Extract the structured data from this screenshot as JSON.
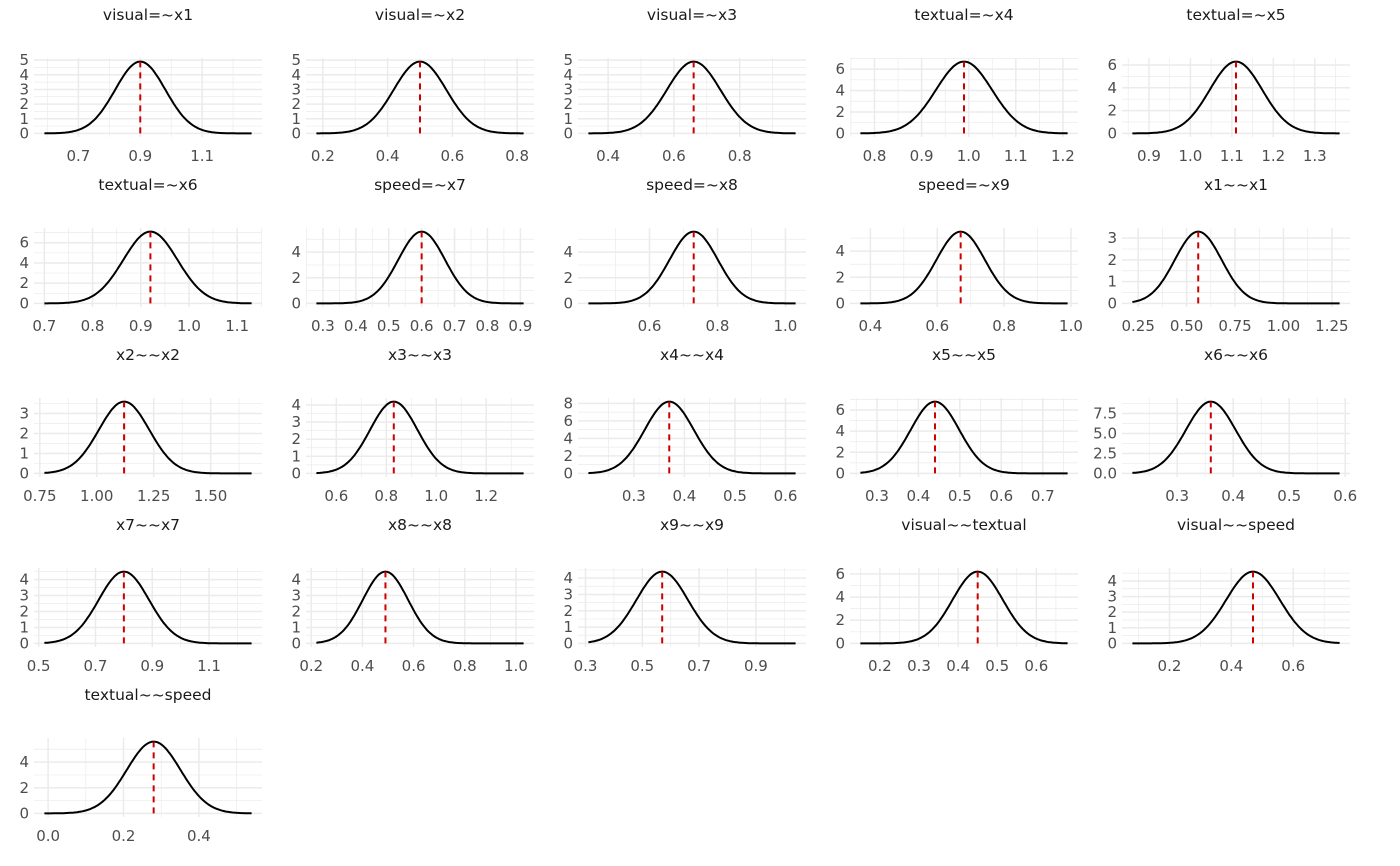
{
  "chart_data": {
    "type": "line",
    "layout": "facet grid, 5 columns",
    "grid": true,
    "colors": {
      "curve": "#000000",
      "mean_line": "#cc0000",
      "grid": "#ebebeb"
    },
    "panels": [
      {
        "title": "visual=~x1",
        "mean": 0.9,
        "peak": 4.9,
        "range": [
          0.59,
          1.26
        ],
        "xticks": [
          "0.7",
          "0.9",
          "1.1"
        ],
        "yticks": [
          "0",
          "1",
          "2",
          "3",
          "4",
          "5"
        ]
      },
      {
        "title": "visual=~x2",
        "mean": 0.5,
        "peak": 4.9,
        "range": [
          0.18,
          0.82
        ],
        "xticks": [
          "0.2",
          "0.4",
          "0.6",
          "0.8"
        ],
        "yticks": [
          "0",
          "1",
          "2",
          "3",
          "4",
          "5"
        ]
      },
      {
        "title": "visual=~x3",
        "mean": 0.66,
        "peak": 4.9,
        "range": [
          0.34,
          0.97
        ],
        "xticks": [
          "0.4",
          "0.6",
          "0.8"
        ],
        "yticks": [
          "0",
          "1",
          "2",
          "3",
          "4",
          "5"
        ]
      },
      {
        "title": "textual=~x4",
        "mean": 0.99,
        "peak": 6.7,
        "range": [
          0.77,
          1.21
        ],
        "xticks": [
          "0.8",
          "0.9",
          "1.0",
          "1.1",
          "1.2"
        ],
        "yticks": [
          "0",
          "2",
          "4",
          "6"
        ]
      },
      {
        "title": "textual=~x5",
        "mean": 1.11,
        "peak": 6.3,
        "range": [
          0.86,
          1.36
        ],
        "xticks": [
          "0.9",
          "1.0",
          "1.1",
          "1.2",
          "1.3"
        ],
        "yticks": [
          "0",
          "2",
          "4",
          "6"
        ]
      },
      {
        "title": "textual=~x6",
        "mean": 0.92,
        "peak": 7.1,
        "range": [
          0.7,
          1.13
        ],
        "xticks": [
          "0.7",
          "0.8",
          "0.9",
          "1.0",
          "1.1"
        ],
        "yticks": [
          "0",
          "2",
          "4",
          "6"
        ]
      },
      {
        "title": "speed=~x7",
        "mean": 0.6,
        "peak": 5.6,
        "range": [
          0.28,
          0.91
        ],
        "xticks": [
          "0.3",
          "0.4",
          "0.5",
          "0.6",
          "0.7",
          "0.8",
          "0.9"
        ],
        "yticks": [
          "0",
          "2",
          "4"
        ]
      },
      {
        "title": "speed=~x8",
        "mean": 0.73,
        "peak": 5.6,
        "range": [
          0.42,
          1.03
        ],
        "xticks": [
          "0.6",
          "0.8",
          "1.0"
        ],
        "yticks": [
          "0",
          "2",
          "4"
        ]
      },
      {
        "title": "speed=~x9",
        "mean": 0.67,
        "peak": 5.5,
        "range": [
          0.37,
          0.99
        ],
        "xticks": [
          "0.4",
          "0.6",
          "0.8",
          "1.0"
        ],
        "yticks": [
          "0",
          "2",
          "4"
        ]
      },
      {
        "title": "x1~~x1",
        "mean": 0.56,
        "peak": 3.3,
        "range": [
          0.22,
          1.29
        ],
        "xticks": [
          "0.25",
          "0.50",
          "0.75",
          "1.00",
          "1.25"
        ],
        "yticks": [
          "0",
          "1",
          "2",
          "3"
        ]
      },
      {
        "title": "x2~~x2",
        "mean": 1.12,
        "peak": 3.6,
        "range": [
          0.77,
          1.68
        ],
        "xticks": [
          "0.75",
          "1.00",
          "1.25",
          "1.50"
        ],
        "yticks": [
          "0",
          "1",
          "2",
          "3"
        ]
      },
      {
        "title": "x3~~x3",
        "mean": 0.83,
        "peak": 4.2,
        "range": [
          0.52,
          1.35
        ],
        "xticks": [
          "0.6",
          "0.8",
          "1.0",
          "1.2"
        ],
        "yticks": [
          "0",
          "1",
          "2",
          "3",
          "4"
        ]
      },
      {
        "title": "x4~~x4",
        "mean": 0.37,
        "peak": 8.2,
        "range": [
          0.21,
          0.62
        ],
        "xticks": [
          "0.3",
          "0.4",
          "0.5",
          "0.6"
        ],
        "yticks": [
          "0",
          "2",
          "4",
          "6",
          "8"
        ]
      },
      {
        "title": "x5~~x5",
        "mean": 0.44,
        "peak": 6.8,
        "range": [
          0.26,
          0.76
        ],
        "xticks": [
          "0.3",
          "0.4",
          "0.5",
          "0.6",
          "0.7"
        ],
        "yticks": [
          "0",
          "2",
          "4",
          "6"
        ]
      },
      {
        "title": "x6~~x6",
        "mean": 0.36,
        "peak": 9.0,
        "range": [
          0.22,
          0.59
        ],
        "xticks": [
          "0.3",
          "0.4",
          "0.5",
          "0.6"
        ],
        "yticks": [
          "0.0",
          "2.5",
          "5.0",
          "7.5"
        ]
      },
      {
        "title": "x7~~x7",
        "mean": 0.8,
        "peak": 4.5,
        "range": [
          0.52,
          1.25
        ],
        "xticks": [
          "0.5",
          "0.7",
          "0.9",
          "1.1"
        ],
        "yticks": [
          "0",
          "1",
          "2",
          "3",
          "4"
        ]
      },
      {
        "title": "x8~~x8",
        "mean": 0.49,
        "peak": 4.5,
        "range": [
          0.22,
          1.03
        ],
        "xticks": [
          "0.2",
          "0.4",
          "0.6",
          "0.8",
          "1.0"
        ],
        "yticks": [
          "0",
          "1",
          "2",
          "3",
          "4"
        ]
      },
      {
        "title": "x9~~x9",
        "mean": 0.57,
        "peak": 4.4,
        "range": [
          0.31,
          1.04
        ],
        "xticks": [
          "0.3",
          "0.5",
          "0.7",
          "0.9"
        ],
        "yticks": [
          "0",
          "1",
          "2",
          "3",
          "4"
        ]
      },
      {
        "title": "visual~~textual",
        "mean": 0.45,
        "peak": 6.2,
        "range": [
          0.15,
          0.68
        ],
        "xticks": [
          "0.2",
          "0.3",
          "0.4",
          "0.5",
          "0.6"
        ],
        "yticks": [
          "0",
          "2",
          "4",
          "6"
        ]
      },
      {
        "title": "visual~~speed",
        "mean": 0.47,
        "peak": 4.6,
        "range": [
          0.08,
          0.75
        ],
        "xticks": [
          "0.2",
          "0.4",
          "0.6"
        ],
        "yticks": [
          "0",
          "1",
          "2",
          "3",
          "4"
        ]
      },
      {
        "title": "textual~~speed",
        "mean": 0.28,
        "peak": 5.6,
        "range": [
          -0.01,
          0.54
        ],
        "xticks": [
          "0.0",
          "0.2",
          "0.4"
        ],
        "yticks": [
          "0",
          "2",
          "4"
        ]
      }
    ]
  }
}
